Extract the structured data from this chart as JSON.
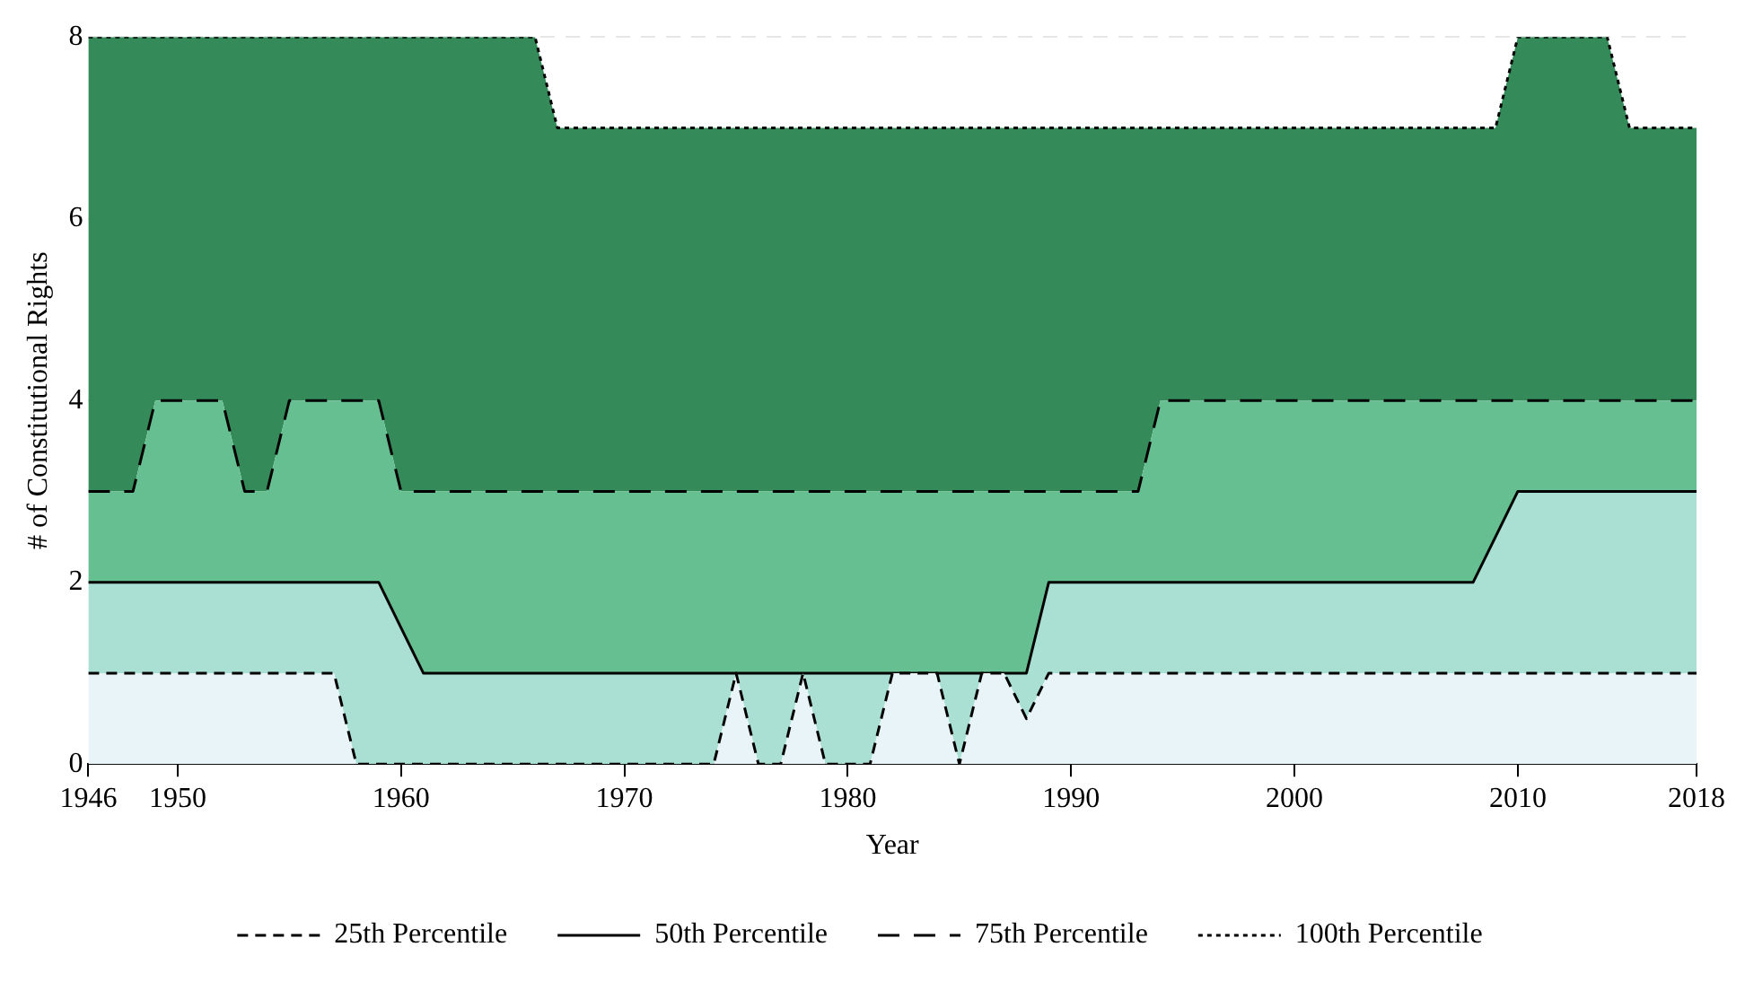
{
  "chart_data": {
    "type": "area",
    "xlabel": "Year",
    "ylabel": "# of Constitutional Rights",
    "xlim": [
      1946,
      2018
    ],
    "xticks": [
      1946,
      1950,
      1960,
      1970,
      1980,
      1990,
      2000,
      2010,
      2018
    ],
    "ylim": [
      0,
      8
    ],
    "yticks": [
      0,
      2,
      4,
      6,
      8
    ],
    "grid": "y",
    "legend": "bottom",
    "marker": "none",
    "x": [
      1946,
      1947,
      1948,
      1949,
      1950,
      1951,
      1952,
      1953,
      1954,
      1955,
      1956,
      1957,
      1958,
      1959,
      1960,
      1961,
      1962,
      1963,
      1964,
      1965,
      1966,
      1967,
      1968,
      1969,
      1970,
      1971,
      1972,
      1973,
      1974,
      1975,
      1976,
      1977,
      1978,
      1979,
      1980,
      1981,
      1982,
      1983,
      1984,
      1985,
      1986,
      1987,
      1988,
      1989,
      1990,
      1991,
      1992,
      1993,
      1994,
      1995,
      1996,
      1997,
      1998,
      1999,
      2000,
      2001,
      2002,
      2003,
      2004,
      2005,
      2006,
      2007,
      2008,
      2009,
      2010,
      2011,
      2012,
      2013,
      2014,
      2015,
      2016,
      2017,
      2018
    ],
    "series": [
      {
        "name": "25th Percentile",
        "color": "#e8f4f8",
        "line_style": "dashed",
        "values": [
          1,
          1,
          1,
          1,
          1,
          1,
          1,
          1,
          1,
          1,
          1,
          1,
          0,
          0,
          0,
          0,
          0,
          0,
          0,
          0,
          0,
          0,
          0,
          0,
          0,
          0,
          0,
          0,
          0,
          1,
          0,
          0,
          1,
          0,
          0,
          0,
          1,
          1,
          1,
          0,
          1,
          1,
          0.5,
          1,
          1,
          1,
          1,
          1,
          1,
          1,
          1,
          1,
          1,
          1,
          1,
          1,
          1,
          1,
          1,
          1,
          1,
          1,
          1,
          1,
          1,
          1,
          1,
          1,
          1,
          1,
          1,
          1,
          1
        ]
      },
      {
        "name": "50th Percentile",
        "color": "#aadfd3",
        "line_style": "solid",
        "values": [
          2,
          2,
          2,
          2,
          2,
          2,
          2,
          2,
          2,
          2,
          2,
          2,
          2,
          2,
          1.5,
          1,
          1,
          1,
          1,
          1,
          1,
          1,
          1,
          1,
          1,
          1,
          1,
          1,
          1,
          1,
          1,
          1,
          1,
          1,
          1,
          1,
          1,
          1,
          1,
          1,
          1,
          1,
          1,
          2,
          2,
          2,
          2,
          2,
          2,
          2,
          2,
          2,
          2,
          2,
          2,
          2,
          2,
          2,
          2,
          2,
          2,
          2,
          2,
          2.5,
          3,
          3,
          3,
          3,
          3,
          3,
          3,
          3,
          3
        ]
      },
      {
        "name": "75th Percentile",
        "color": "#66bf91",
        "line_style": "dashed",
        "values": [
          3,
          3,
          3,
          4,
          4,
          4,
          4,
          3,
          3,
          4,
          4,
          4,
          4,
          4,
          3,
          3,
          3,
          3,
          3,
          3,
          3,
          3,
          3,
          3,
          3,
          3,
          3,
          3,
          3,
          3,
          3,
          3,
          3,
          3,
          3,
          3,
          3,
          3,
          3,
          3,
          3,
          3,
          3,
          3,
          3,
          3,
          3,
          3,
          4,
          4,
          4,
          4,
          4,
          4,
          4,
          4,
          4,
          4,
          4,
          4,
          4,
          4,
          4,
          4,
          4,
          4,
          4,
          4,
          4,
          4,
          4,
          4,
          4
        ]
      },
      {
        "name": "100th Percentile",
        "color": "#348b59",
        "line_style": "dotted",
        "values": [
          8,
          8,
          8,
          8,
          8,
          8,
          8,
          8,
          8,
          8,
          8,
          8,
          8,
          8,
          8,
          8,
          8,
          8,
          8,
          8,
          8,
          7,
          7,
          7,
          7,
          7,
          7,
          7,
          7,
          7,
          7,
          7,
          7,
          7,
          7,
          7,
          7,
          7,
          7,
          7,
          7,
          7,
          7,
          7,
          7,
          7,
          7,
          7,
          7,
          7,
          7,
          7,
          7,
          7,
          7,
          7,
          7,
          7,
          7,
          7,
          7,
          7,
          7,
          7,
          8,
          8,
          8,
          8,
          8,
          7,
          7,
          7,
          7
        ]
      }
    ]
  }
}
